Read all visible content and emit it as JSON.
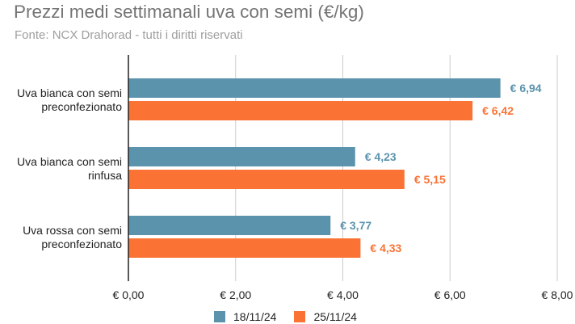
{
  "colors": {
    "series1": "#5b93ad",
    "series2": "#fa7335",
    "grid": "#cccccc",
    "axis": "#222222",
    "title": "#757575",
    "subtitle": "#9e9e9e"
  },
  "chart_data": {
    "type": "bar",
    "orientation": "horizontal",
    "title": "Prezzi medi settimanali uva con semi (€/kg)",
    "subtitle": "Fonte: NCX Drahorad - tutti i diritti riservati",
    "categories": [
      [
        "Uva bianca con semi",
        "preconfezionato"
      ],
      [
        "Uva bianca con semi",
        "rinfusa"
      ],
      [
        "Uva rossa con semi",
        "preconfezionato"
      ]
    ],
    "series": [
      {
        "name": "18/11/24",
        "values": [
          6.94,
          4.23,
          3.77
        ],
        "labels": [
          "€ 6,94",
          "€ 4,23",
          "€ 3,77"
        ]
      },
      {
        "name": "25/11/24",
        "values": [
          6.42,
          5.15,
          4.33
        ],
        "labels": [
          "€ 6,42",
          "€ 5,15",
          "€ 4,33"
        ]
      }
    ],
    "xlim": [
      0,
      8
    ],
    "ticks": [
      0,
      2,
      4,
      6,
      8
    ],
    "tick_labels": [
      "€ 0,00",
      "€ 2,00",
      "€ 4,00",
      "€ 6,00",
      "€ 8,00"
    ],
    "grid": true,
    "legend": "bottom"
  }
}
